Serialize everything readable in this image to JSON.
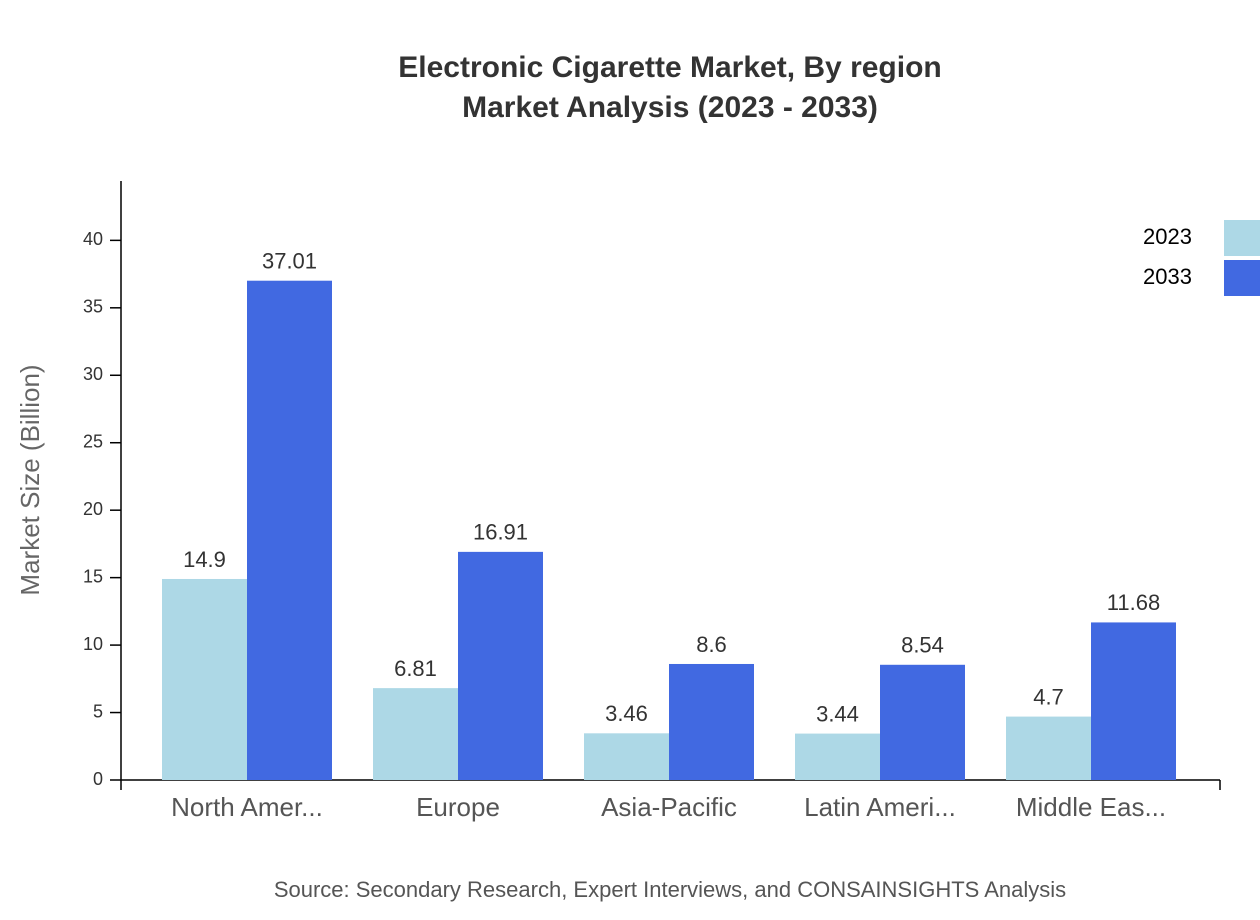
{
  "chart_data": {
    "type": "bar",
    "title": [
      "Electronic Cigarette Market, By region",
      "Market Analysis (2023 - 2033)"
    ],
    "y_label": "Market Size (Billion)",
    "source": "Source: Secondary Research, Expert Interviews, and CONSAINSIGHTS Analysis",
    "categories": [
      "North Amer...",
      "Europe",
      "Asia-Pacific",
      "Latin Ameri...",
      "Middle Eas..."
    ],
    "series": [
      {
        "name": "2023",
        "color": "#add8e6",
        "values": [
          14.9,
          6.81,
          3.46,
          3.44,
          4.7
        ]
      },
      {
        "name": "2033",
        "color": "#4169e1",
        "values": [
          37.01,
          16.91,
          8.6,
          8.54,
          11.68
        ]
      }
    ],
    "ylim": [
      0,
      44.4
    ],
    "yticks": [
      0,
      5,
      10,
      15,
      20,
      25,
      30,
      35,
      40
    ],
    "grid": false,
    "legend": "top-right"
  }
}
